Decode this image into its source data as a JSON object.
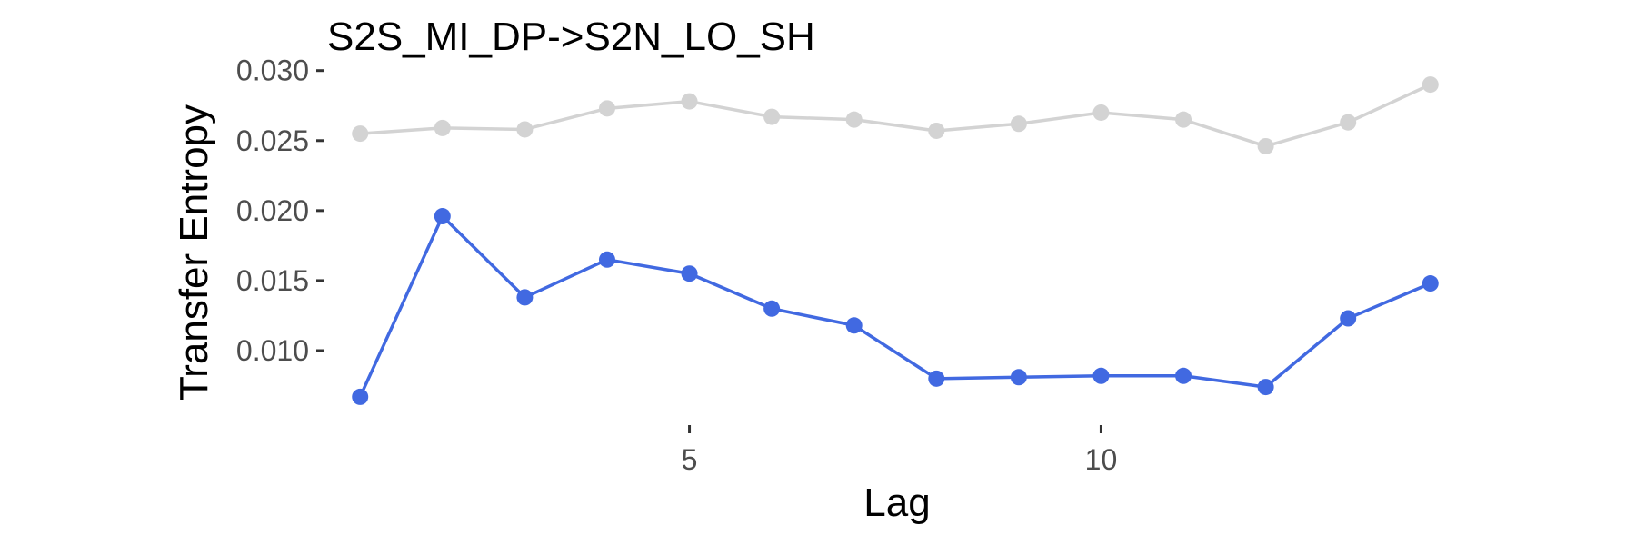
{
  "chart_data": {
    "type": "line",
    "title": "S2S_MI_DP->S2N_LO_SH",
    "xlabel": "Lag",
    "ylabel": "Transfer Entropy",
    "x": [
      1,
      2,
      3,
      4,
      5,
      6,
      7,
      8,
      9,
      10,
      11,
      12,
      13,
      14
    ],
    "xlim": [
      0.6,
      14.4
    ],
    "ylim": [
      0.0052,
      0.0305
    ],
    "x_ticks": [
      5,
      10
    ],
    "x_tick_labels": [
      "5",
      "10"
    ],
    "y_ticks": [
      0.01,
      0.015,
      0.02,
      0.025,
      0.03
    ],
    "y_tick_labels": [
      "0.010",
      "0.015",
      "0.020",
      "0.025",
      "0.030"
    ],
    "grid": false,
    "series": [
      {
        "color": "#d3d3d3",
        "values": [
          0.0255,
          0.0259,
          0.0258,
          0.0273,
          0.0278,
          0.0267,
          0.0265,
          0.0257,
          0.0262,
          0.027,
          0.0265,
          0.0246,
          0.0263,
          0.029
        ]
      },
      {
        "color": "#4169e1",
        "values": [
          0.0067,
          0.0196,
          0.0138,
          0.0165,
          0.0155,
          0.013,
          0.0118,
          0.008,
          0.0081,
          0.0082,
          0.0082,
          0.0074,
          0.0123,
          0.0148
        ]
      }
    ]
  }
}
